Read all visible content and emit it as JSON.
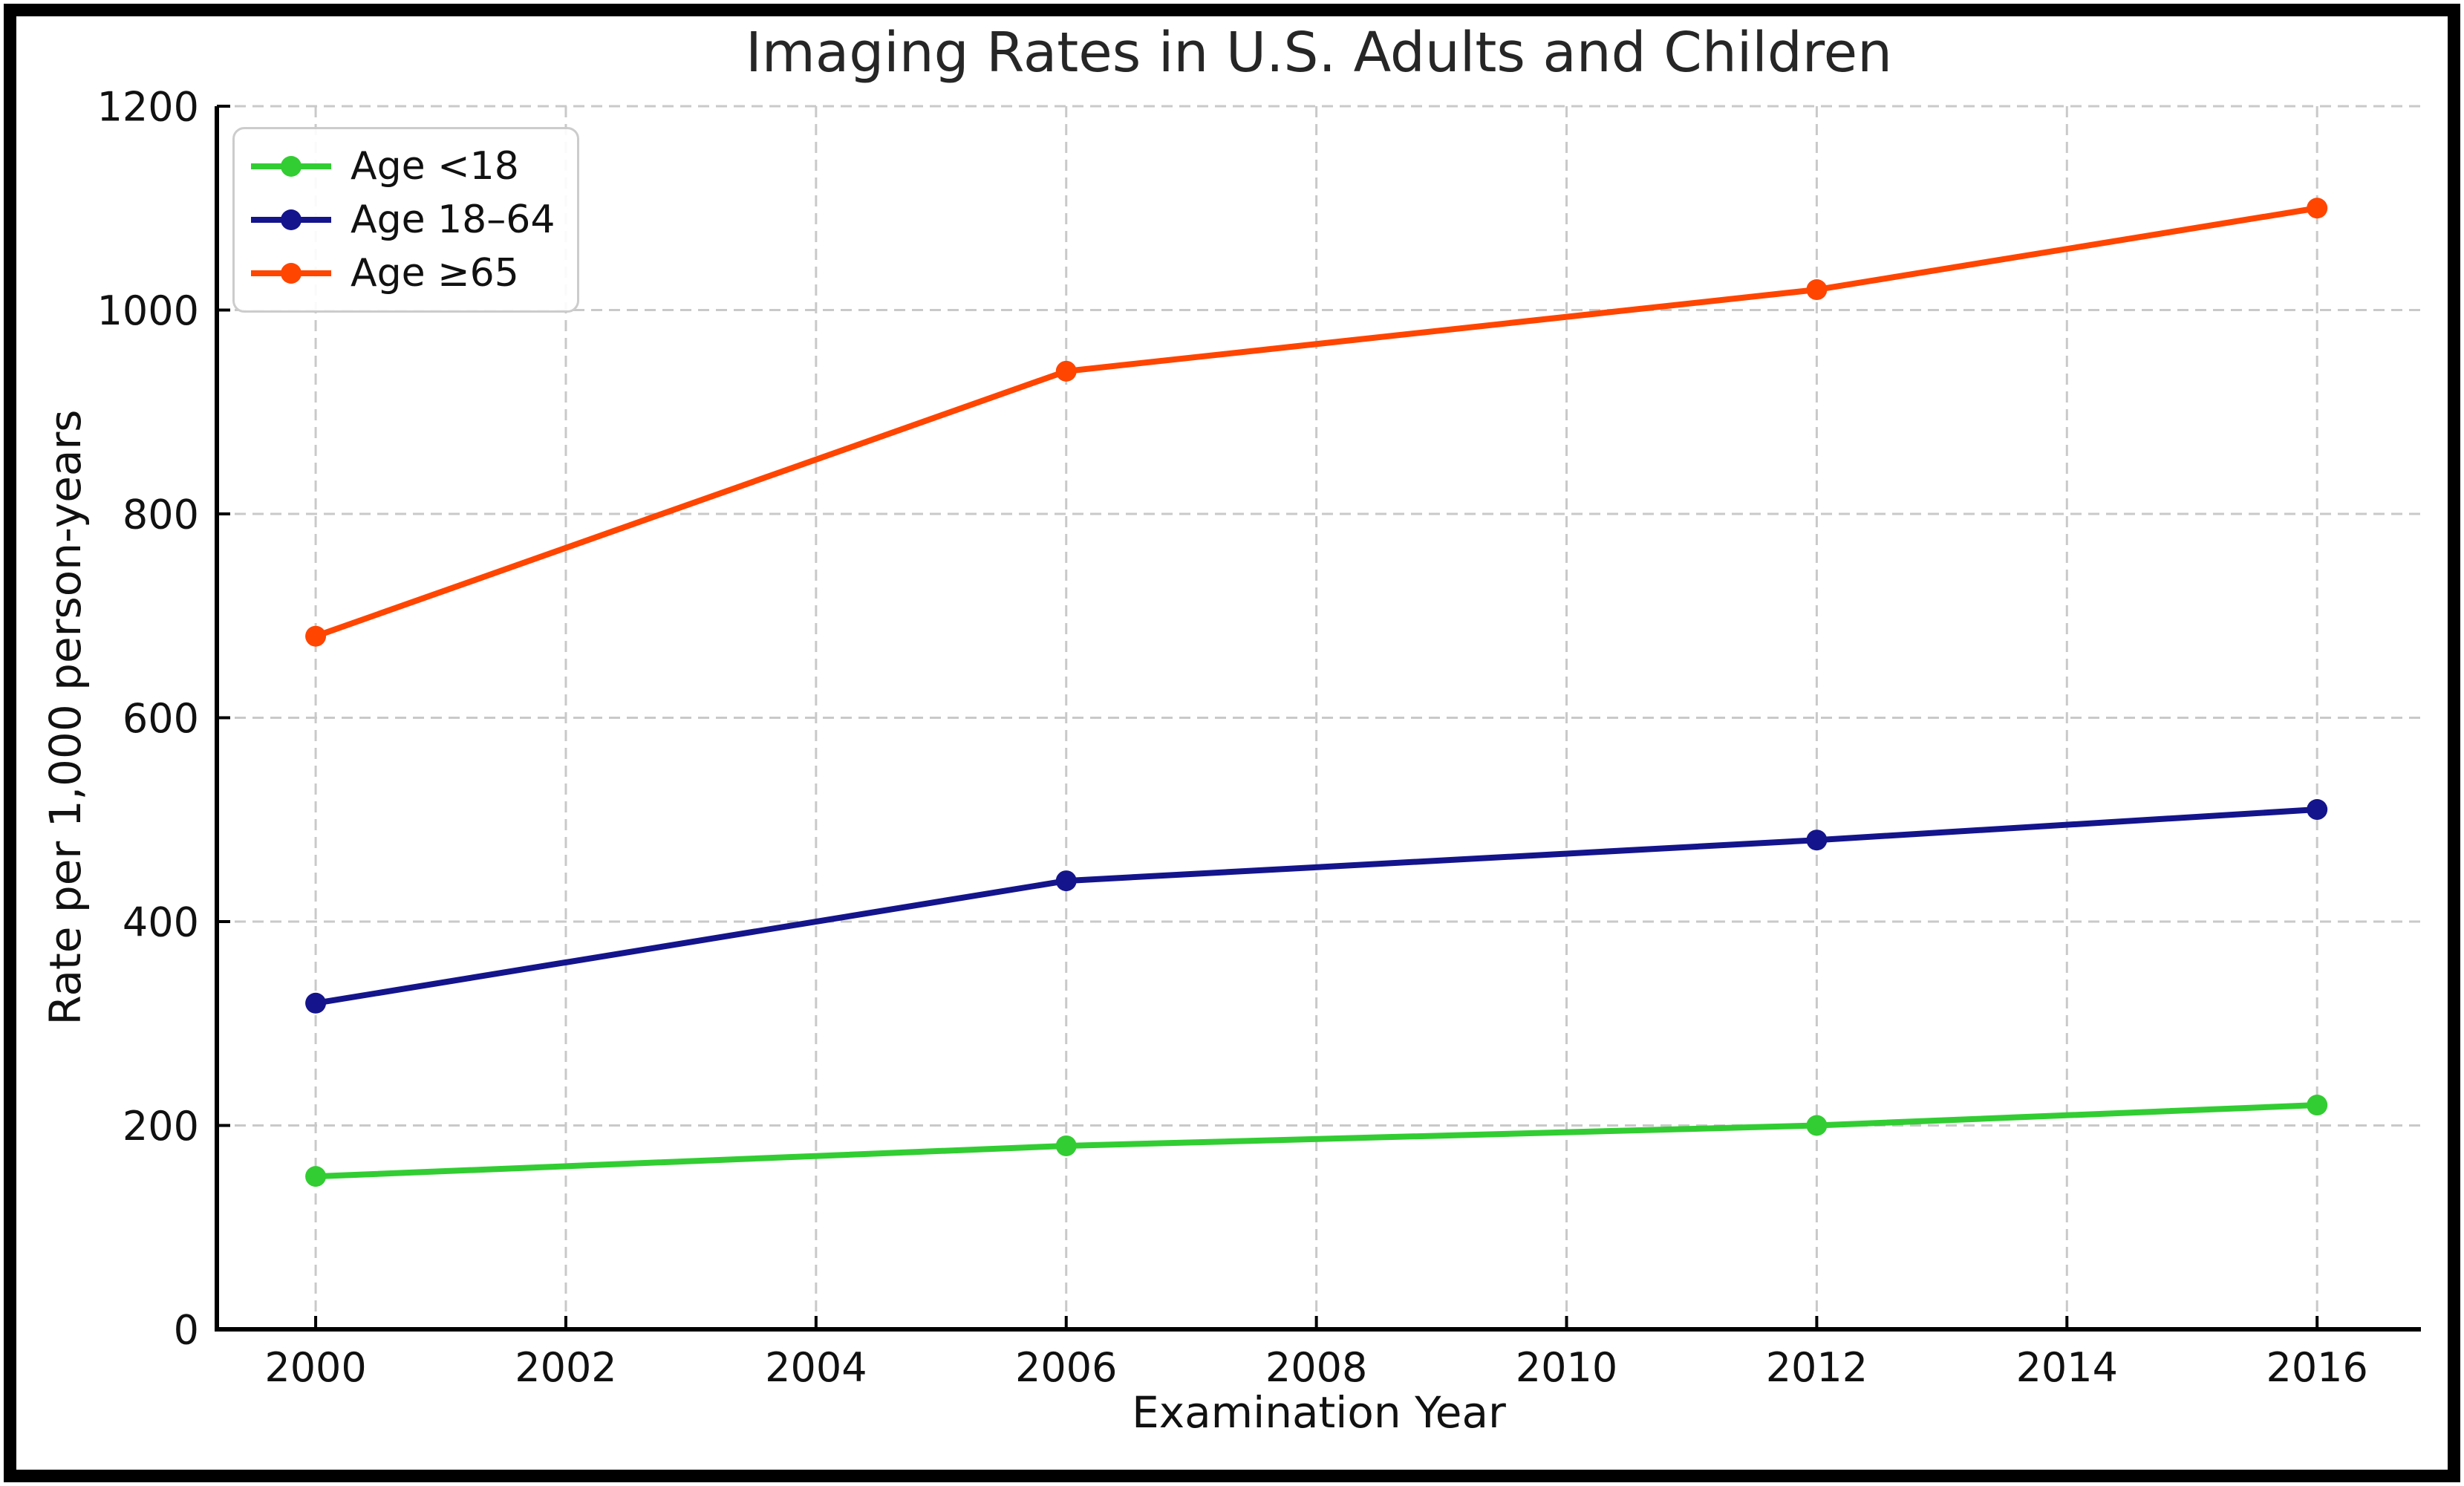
{
  "figure": {
    "title": "Imaging Rates in U.S. Adults and Children"
  },
  "axes": {
    "xlabel": "Examination Year",
    "ylabel": "Rate per 1,000 person-years"
  },
  "legend": {
    "items": [
      {
        "label": "Age <18",
        "color": "#32CD32"
      },
      {
        "label": "Age 18–64",
        "color": "#14148C"
      },
      {
        "label": "Age ≥65",
        "color": "#FF4500"
      }
    ]
  },
  "chart_data": {
    "type": "line",
    "title": "Imaging Rates in U.S. Adults and Children",
    "xlabel": "Examination Year",
    "ylabel": "Rate per 1,000 person-years",
    "x": [
      2000,
      2006,
      2012,
      2016
    ],
    "series": [
      {
        "name": "Age <18",
        "color": "#32CD32",
        "values": [
          150,
          180,
          200,
          220
        ]
      },
      {
        "name": "Age 18–64",
        "color": "#14148C",
        "values": [
          320,
          440,
          480,
          510
        ]
      },
      {
        "name": "Age ≥65",
        "color": "#FF4500",
        "values": [
          680,
          940,
          1020,
          1100
        ]
      }
    ],
    "xlim": [
      1999.21,
      2016.83
    ],
    "ylim": [
      0,
      1200
    ],
    "xticks": [
      2000,
      2002,
      2004,
      2006,
      2008,
      2010,
      2012,
      2014,
      2016
    ],
    "yticks": [
      0,
      200,
      400,
      600,
      800,
      1000,
      1200
    ],
    "grid": true,
    "grid_style": "dashed",
    "grid_color": "#c9c9c9",
    "marker": "o",
    "legend_position": "upper left"
  }
}
